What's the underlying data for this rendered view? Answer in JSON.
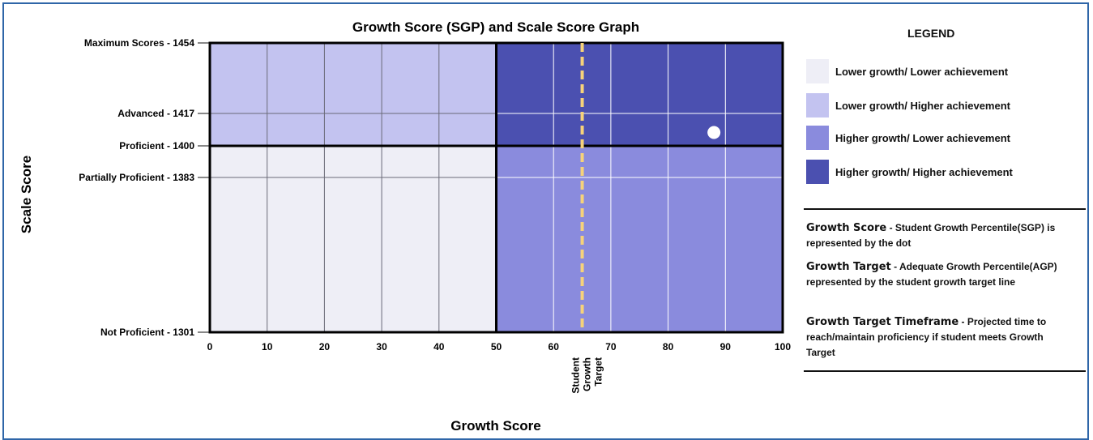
{
  "chart_data": {
    "type": "scatter",
    "title": "Growth Score (SGP) and Scale Score Graph",
    "xlabel": "Growth Score",
    "ylabel": "Scale Score",
    "x_ticks": [
      0,
      10,
      20,
      30,
      40,
      50,
      60,
      70,
      80,
      90,
      100
    ],
    "xlim": [
      0,
      100
    ],
    "y_levels": [
      {
        "label": "Maximum Scores - 1454",
        "value": 1454
      },
      {
        "label": "Advanced - 1417",
        "value": 1417
      },
      {
        "label": "Proficient - 1400",
        "value": 1400
      },
      {
        "label": "Partially Proficient - 1383",
        "value": 1383
      },
      {
        "label": "Not Proficient - 1301",
        "value": 1301
      }
    ],
    "growth_split": 50,
    "growth_target": {
      "value": 65,
      "label_lines": [
        "Student",
        "Growth",
        "Target"
      ]
    },
    "point": {
      "x": 88,
      "y": 1407
    },
    "quadrants": [
      {
        "name": "Lower growth/ Lower achievement",
        "color": "#eeeef6"
      },
      {
        "name": "Lower growth/ Higher achievement",
        "color": "#c3c3f0"
      },
      {
        "name": "Higher growth/ Lower achievement",
        "color": "#8a8bdd"
      },
      {
        "name": "Higher growth/ Higher achievement",
        "color": "#4b50b0"
      }
    ]
  },
  "legend": {
    "title": "LEGEND",
    "items": [
      {
        "label": "Lower growth/ Lower achievement",
        "color": "#eeeef6"
      },
      {
        "label": "Lower growth/ Higher achievement",
        "color": "#c3c3f0"
      },
      {
        "label": "Higher growth/ Lower achievement",
        "color": "#8a8bdd"
      },
      {
        "label": "Higher growth/ Higher achievement",
        "color": "#4b50b0"
      }
    ]
  },
  "definitions": [
    {
      "term": "Growth Score",
      "text": " - Student Growth Percentile(SGP) is represented by the dot"
    },
    {
      "term": "Growth Target",
      "text": " - Adequate Growth Percentile(AGP) represented by the student growth target line"
    },
    {
      "term": "Growth Target Timeframe",
      "text": " - Projected time to reach/maintain proficiency if student meets Growth Target"
    }
  ],
  "colors": {
    "frame": "#2f66a8",
    "target_line": "#f6d27a",
    "dot": "#ffffff"
  }
}
